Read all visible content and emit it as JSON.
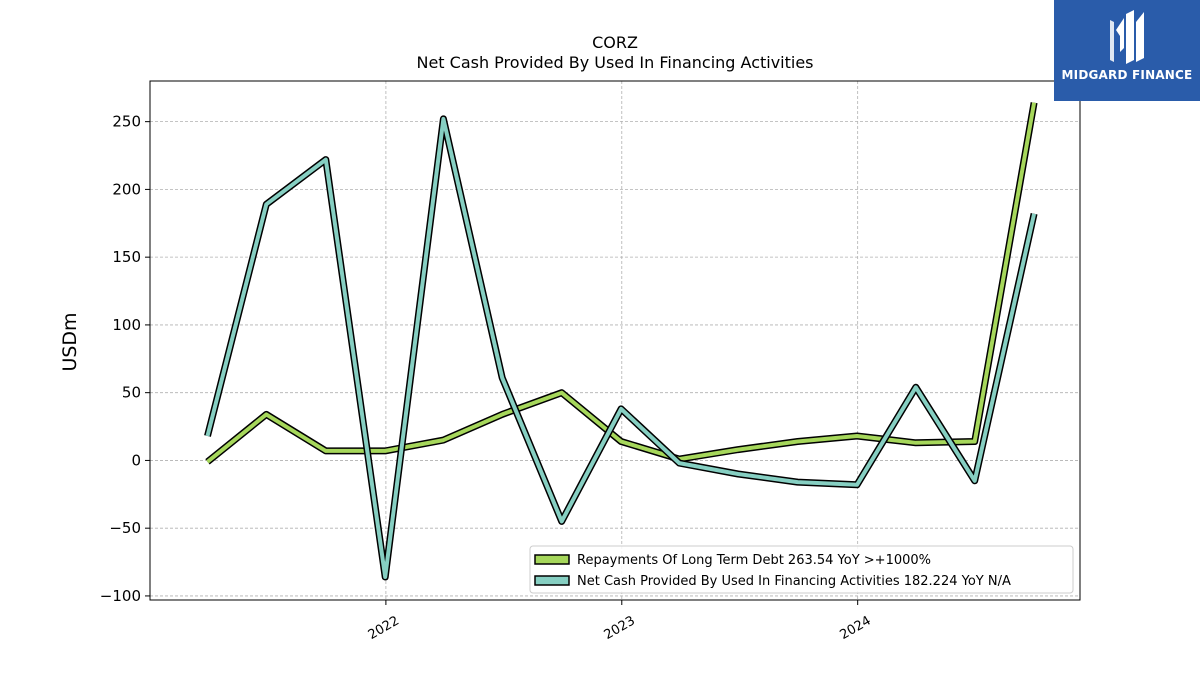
{
  "brand": {
    "name": "MIDGARD FINANCE",
    "color": "#2a5caa"
  },
  "chart_data": {
    "type": "line",
    "title": "CORZ",
    "subtitle": "Net Cash Provided By Used In Financing Activities",
    "ylabel": "USDm",
    "xlabel": "",
    "ylim": [
      -103,
      280
    ],
    "xlim": [
      "2021-01-01",
      "2024-12-10"
    ],
    "yticks": [
      -100,
      -50,
      0,
      50,
      100,
      150,
      200,
      250
    ],
    "ytick_labels": [
      "−100",
      "−50",
      "0",
      "50",
      "100",
      "150",
      "200",
      "250"
    ],
    "xticks": [
      "2022-01-01",
      "2023-01-01",
      "2024-01-01"
    ],
    "xtick_labels": [
      "2022",
      "2023",
      "2024"
    ],
    "grid": true,
    "legend_position": "bottom-right",
    "x": [
      "2021-03-31",
      "2021-06-30",
      "2021-09-30",
      "2021-12-31",
      "2022-03-31",
      "2022-06-30",
      "2022-09-30",
      "2022-12-31",
      "2023-03-31",
      "2023-06-30",
      "2023-09-30",
      "2023-12-31",
      "2024-03-31",
      "2024-06-30",
      "2024-09-30"
    ],
    "series": [
      {
        "name": "Repayments Of Long Term Debt",
        "legend_label": "Repayments Of Long Term Debt  263.54 YoY >+1000%",
        "color": "#a6d75b",
        "values": [
          -1,
          34,
          7,
          7,
          15,
          34,
          50,
          14,
          1,
          8,
          14,
          18,
          13,
          14,
          264
        ]
      },
      {
        "name": "Net Cash Provided By Used In Financing Activities",
        "legend_label": "Net Cash Provided By Used In Financing Activities  182.224 YoY N/A",
        "color": "#86cfc2",
        "values": [
          18,
          189,
          222,
          -86,
          252,
          61,
          -45,
          38,
          -2,
          -10,
          -16,
          -18,
          54,
          -15,
          182
        ]
      }
    ]
  }
}
